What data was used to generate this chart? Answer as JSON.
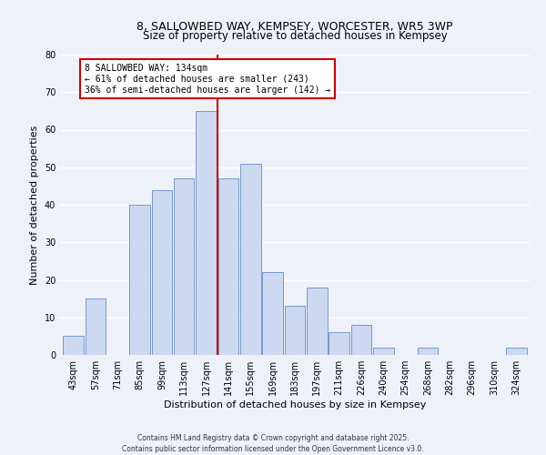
{
  "title": "8, SALLOWBED WAY, KEMPSEY, WORCESTER, WR5 3WP",
  "subtitle": "Size of property relative to detached houses in Kempsey",
  "xlabel": "Distribution of detached houses by size in Kempsey",
  "ylabel": "Number of detached properties",
  "bin_labels": [
    "43sqm",
    "57sqm",
    "71sqm",
    "85sqm",
    "99sqm",
    "113sqm",
    "127sqm",
    "141sqm",
    "155sqm",
    "169sqm",
    "183sqm",
    "197sqm",
    "211sqm",
    "226sqm",
    "240sqm",
    "254sqm",
    "268sqm",
    "282sqm",
    "296sqm",
    "310sqm",
    "324sqm"
  ],
  "bar_heights": [
    5,
    15,
    0,
    40,
    44,
    47,
    65,
    47,
    51,
    22,
    13,
    18,
    6,
    8,
    2,
    0,
    2,
    0,
    0,
    0,
    2
  ],
  "bar_color": "#ccd9f0",
  "bar_edge_color": "#7799cc",
  "vline_x_index": 6.5,
  "vline_color": "#cc0000",
  "annotation_text": "8 SALLOWBED WAY: 134sqm\n← 61% of detached houses are smaller (243)\n36% of semi-detached houses are larger (142) →",
  "annotation_box_color": "#ffffff",
  "annotation_box_edge": "#cc0000",
  "ylim": [
    0,
    80
  ],
  "yticks": [
    0,
    10,
    20,
    30,
    40,
    50,
    60,
    70,
    80
  ],
  "footer1": "Contains HM Land Registry data © Crown copyright and database right 2025.",
  "footer2": "Contains public sector information licensed under the Open Government Licence v3.0.",
  "bg_color": "#eef2f8",
  "grid_color": "#ffffff",
  "title_fontsize": 9,
  "subtitle_fontsize": 8.5,
  "axis_label_fontsize": 8,
  "tick_fontsize": 7,
  "annotation_fontsize": 7,
  "footer_fontsize": 5.5
}
